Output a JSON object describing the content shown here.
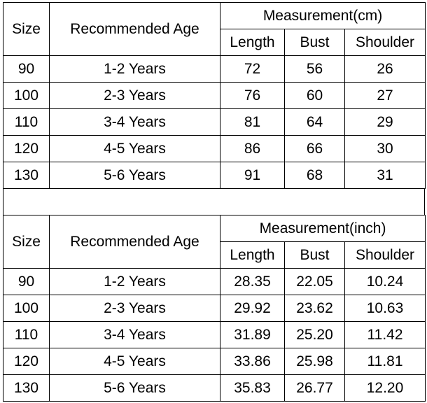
{
  "tables": [
    {
      "headers": {
        "size": "Size",
        "age": "Recommended Age",
        "measurement": "Measurement(cm)",
        "columns": [
          "Length",
          "Bust",
          "Shoulder"
        ]
      },
      "rows": [
        [
          "90",
          "1-2 Years",
          "72",
          "56",
          "26"
        ],
        [
          "100",
          "2-3 Years",
          "76",
          "60",
          "27"
        ],
        [
          "110",
          "3-4 Years",
          "81",
          "64",
          "29"
        ],
        [
          "120",
          "4-5 Years",
          "86",
          "66",
          "30"
        ],
        [
          "130",
          "5-6 Years",
          "91",
          "68",
          "31"
        ]
      ]
    },
    {
      "headers": {
        "size": "Size",
        "age": "Recommended Age",
        "measurement": "Measurement(inch)",
        "columns": [
          "Length",
          "Bust",
          "Shoulder"
        ]
      },
      "rows": [
        [
          "90",
          "1-2 Years",
          "28.35",
          "22.05",
          "10.24"
        ],
        [
          "100",
          "2-3 Years",
          "29.92",
          "23.62",
          "10.63"
        ],
        [
          "110",
          "3-4 Years",
          "31.89",
          "25.20",
          "11.42"
        ],
        [
          "120",
          "4-5 Years",
          "33.86",
          "25.98",
          "11.81"
        ],
        [
          "130",
          "5-6 Years",
          "35.83",
          "26.77",
          "12.20"
        ]
      ]
    }
  ]
}
